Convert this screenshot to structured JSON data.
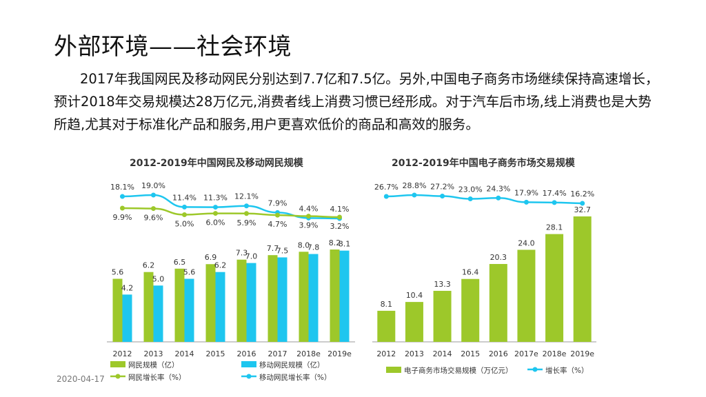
{
  "page": {
    "title": "外部环境——社会环境",
    "paragraph": "2017年我国网民及移动网民分别达到7.7亿和7.5亿。另外,中国电子商务市场继续保持高速增长，预计2018年交易规模达28万亿元,消费者线上消费习惯已经形成。对于汽车后市场,线上消费也是大势所趋,尤其对于标准化产品和服务,用户更喜欢低价的商品和高效的服务。",
    "footer_date": "2020-04-17"
  },
  "colors": {
    "green": "#9dc82a",
    "blue": "#1ec6ef",
    "axis": "#999999",
    "label": "#333333"
  },
  "chart_data": [
    {
      "type": "bar",
      "title": "2012-2019年中国网民及移动网民规模",
      "categories": [
        "2012",
        "2013",
        "2014",
        "2015",
        "2016",
        "2017",
        "2018e",
        "2019e"
      ],
      "series": [
        {
          "name": "网民规模（亿）",
          "kind": "bar",
          "color": "#9dc82a",
          "values": [
            5.6,
            6.2,
            6.5,
            6.9,
            7.3,
            7.7,
            8.0,
            8.2
          ],
          "labels": [
            "5.6",
            "6.2",
            "6.5",
            "6.9",
            "7.3",
            "7.7",
            "8.0",
            "8.2"
          ]
        },
        {
          "name": "移动网民规模（亿）",
          "kind": "bar",
          "color": "#1ec6ef",
          "values": [
            4.2,
            5.0,
            5.6,
            6.2,
            7.0,
            7.5,
            7.8,
            8.1
          ],
          "labels": [
            "4.2",
            "5.0",
            "5.6",
            "6.2",
            "7.0",
            "7.5",
            "7.8",
            "8.1"
          ]
        },
        {
          "name": "网民增长率（%）",
          "kind": "line",
          "color": "#9dc82a",
          "values": [
            9.9,
            9.6,
            5.0,
            6.0,
            5.9,
            4.7,
            3.9,
            3.2
          ],
          "labels": [
            "9.9%",
            "9.6%",
            "5.0%",
            "6.0%",
            "5.9%",
            "4.7%",
            "3.9%",
            "3.2%"
          ]
        },
        {
          "name": "移动网民增长率（%）",
          "kind": "line",
          "color": "#1ec6ef",
          "values": [
            18.1,
            19.0,
            11.4,
            11.3,
            12.1,
            7.9,
            4.4,
            4.1
          ],
          "labels": [
            "18.1%",
            "19.0%",
            "11.4%",
            "11.3%",
            "12.1%",
            "7.9%",
            "4.4%",
            "4.1%"
          ]
        }
      ],
      "legend": [
        {
          "text": "网民规模（亿）",
          "kind": "bar",
          "color": "#9dc82a"
        },
        {
          "text": "移动网民规模（亿）",
          "kind": "bar",
          "color": "#1ec6ef"
        },
        {
          "text": "网民增长率（%）",
          "kind": "line",
          "color": "#9dc82a"
        },
        {
          "text": "移动网民增长率（%）",
          "kind": "line",
          "color": "#1ec6ef"
        }
      ],
      "legend_position": "bottom",
      "grid": false
    },
    {
      "type": "bar",
      "title": "2012-2019年中国电子商务市场交易规模",
      "categories": [
        "2012",
        "2013",
        "2014",
        "2015",
        "2016",
        "2017e",
        "2018e",
        "2019e"
      ],
      "series": [
        {
          "name": "电子商务市场交易规模（万亿元）",
          "kind": "bar",
          "color": "#9dc82a",
          "values": [
            8.1,
            10.4,
            13.3,
            16.4,
            20.3,
            24.0,
            28.1,
            32.7
          ],
          "labels": [
            "8.1",
            "10.4",
            "13.3",
            "16.4",
            "20.3",
            "24.0",
            "28.1",
            "32.7"
          ]
        },
        {
          "name": "增长率（%）",
          "kind": "line",
          "color": "#1ec6ef",
          "values": [
            26.7,
            28.8,
            27.2,
            23.0,
            24.3,
            17.9,
            17.4,
            16.2
          ],
          "labels": [
            "26.7%",
            "28.8%",
            "27.2%",
            "23.0%",
            "24.3%",
            "17.9%",
            "17.4%",
            "16.2%"
          ]
        }
      ],
      "legend": [
        {
          "text": "电子商务市场交易规模（万亿元）",
          "kind": "bar",
          "color": "#9dc82a"
        },
        {
          "text": "增长率（%）",
          "kind": "line",
          "color": "#1ec6ef"
        }
      ],
      "legend_position": "bottom",
      "grid": false
    }
  ]
}
